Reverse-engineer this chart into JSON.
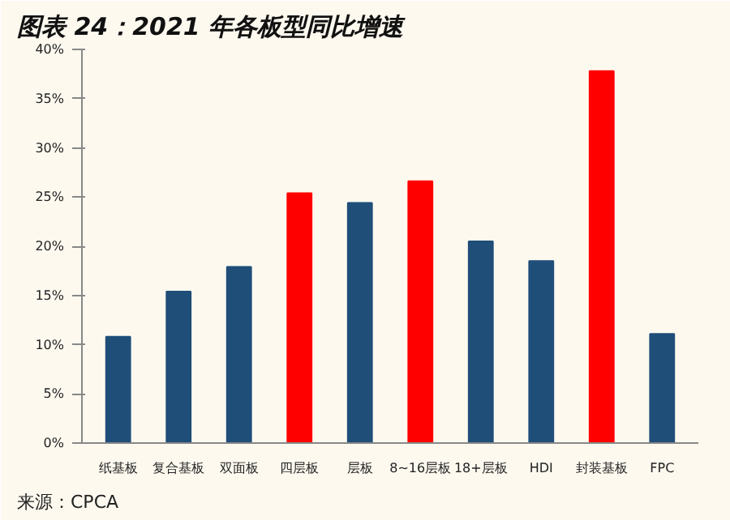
{
  "chart_data": {
    "type": "bar",
    "title": "图表 24：2021 年各板型同比增速",
    "categories": [
      "纸基板",
      "复合基板",
      "双面板",
      "四层板",
      "层板",
      "8~16层板",
      "18+层板",
      "HDI",
      "封装基板",
      "FPC"
    ],
    "values": [
      10.8,
      15.4,
      17.9,
      25.4,
      24.4,
      26.6,
      20.5,
      18.5,
      37.8,
      11.1
    ],
    "colors": [
      "#1f4e79",
      "#1f4e79",
      "#1f4e79",
      "#ff0000",
      "#1f4e79",
      "#ff0000",
      "#1f4e79",
      "#1f4e79",
      "#ff0000",
      "#1f4e79"
    ],
    "ylim": [
      0,
      40
    ],
    "yticks": [
      {
        "value": 0,
        "label": "0%"
      },
      {
        "value": 5,
        "label": "5%"
      },
      {
        "value": 10,
        "label": "10%"
      },
      {
        "value": 15,
        "label": "15%"
      },
      {
        "value": 20,
        "label": "20%"
      },
      {
        "value": 25,
        "label": "25%"
      },
      {
        "value": 30,
        "label": "30%"
      },
      {
        "value": 35,
        "label": "35%"
      },
      {
        "value": 40,
        "label": "40%"
      }
    ],
    "grid": false,
    "annotations": [
      "来源：CPCA"
    ]
  }
}
